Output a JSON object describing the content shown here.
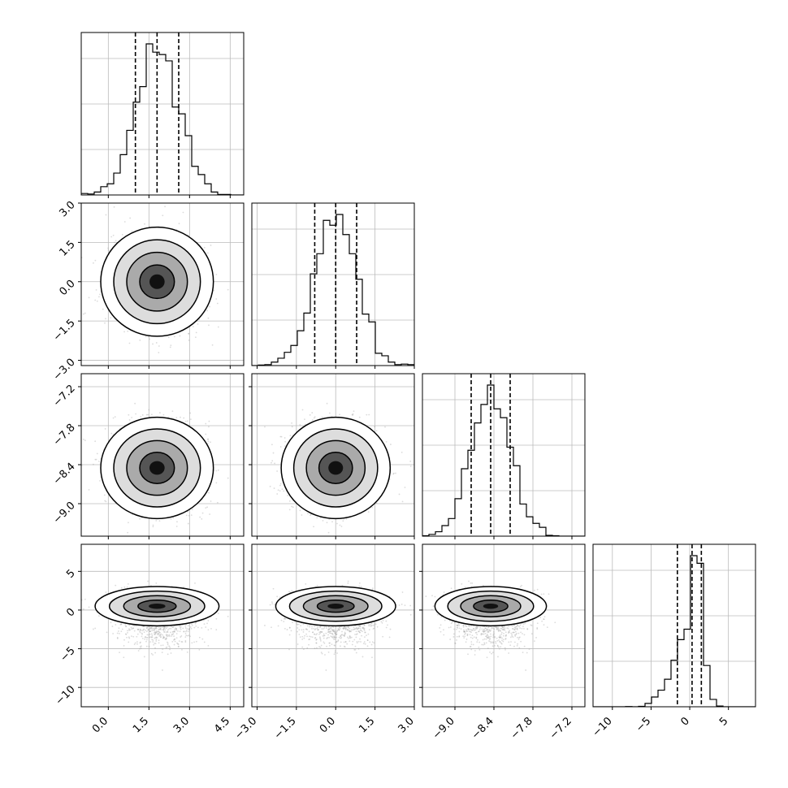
{
  "chart_data": {
    "type": "corner",
    "title": "",
    "grid": true,
    "contour_levels": 4,
    "parameters": [
      {
        "range": [
          -1.0,
          5.0
        ],
        "ticks": [
          "0.0",
          "1.5",
          "3.0",
          "4.5"
        ],
        "tick_values": [
          0.0,
          1.5,
          3.0,
          4.5
        ],
        "quantiles": [
          1.0,
          1.8,
          2.6
        ],
        "mean": 1.8,
        "std": 0.8
      },
      {
        "range": [
          -3.2,
          3.0
        ],
        "ticks": [
          "−3.0",
          "−1.5",
          "0.0",
          "1.5",
          "3.0"
        ],
        "tick_values": [
          -3.0,
          -1.5,
          0.0,
          1.5,
          3.0
        ],
        "quantiles": [
          -0.8,
          0.0,
          0.8
        ],
        "mean": 0.0,
        "std": 0.8
      },
      {
        "range": [
          -9.5,
          -7.0
        ],
        "ticks": [
          "−9.0",
          "−8.4",
          "−7.8",
          "−7.2"
        ],
        "tick_values": [
          -9.0,
          -8.4,
          -7.8,
          -7.2
        ],
        "quantiles": [
          -8.75,
          -8.45,
          -8.15
        ],
        "mean": -8.45,
        "std": 0.3
      },
      {
        "range": [
          -12.5,
          8.5
        ],
        "ticks": [
          "−10",
          "−5",
          "0",
          "5"
        ],
        "tick_values": [
          -10,
          -5,
          0,
          5
        ],
        "quantiles": [
          -1.6,
          0.3,
          1.5
        ],
        "mean": 0.5,
        "std": 1.3
      }
    ]
  }
}
